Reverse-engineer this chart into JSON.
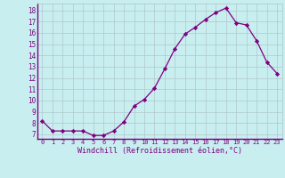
{
  "x": [
    0,
    1,
    2,
    3,
    4,
    5,
    6,
    7,
    8,
    9,
    10,
    11,
    12,
    13,
    14,
    15,
    16,
    17,
    18,
    19,
    20,
    21,
    22,
    23
  ],
  "y": [
    8.2,
    7.3,
    7.3,
    7.3,
    7.3,
    6.9,
    6.9,
    7.3,
    8.1,
    9.5,
    10.1,
    11.1,
    12.8,
    14.6,
    15.9,
    16.5,
    17.2,
    17.8,
    18.2,
    16.9,
    16.7,
    15.3,
    13.4,
    12.4
  ],
  "line_color": "#800080",
  "marker": "D",
  "marker_size": 2.2,
  "bg_color": "#c8eef0",
  "grid_color": "#b0c8cc",
  "xlabel": "Windchill (Refroidissement éolien,°C)",
  "xlabel_color": "#800080",
  "ylabel_ticks": [
    7,
    8,
    9,
    10,
    11,
    12,
    13,
    14,
    15,
    16,
    17,
    18
  ],
  "ylim": [
    6.6,
    18.6
  ],
  "xlim": [
    -0.5,
    23.5
  ],
  "tick_color": "#800080",
  "font_color": "#800080",
  "font_family": "monospace",
  "xtick_fontsize": 5.0,
  "ytick_fontsize": 5.5,
  "xlabel_fontsize": 6.0
}
